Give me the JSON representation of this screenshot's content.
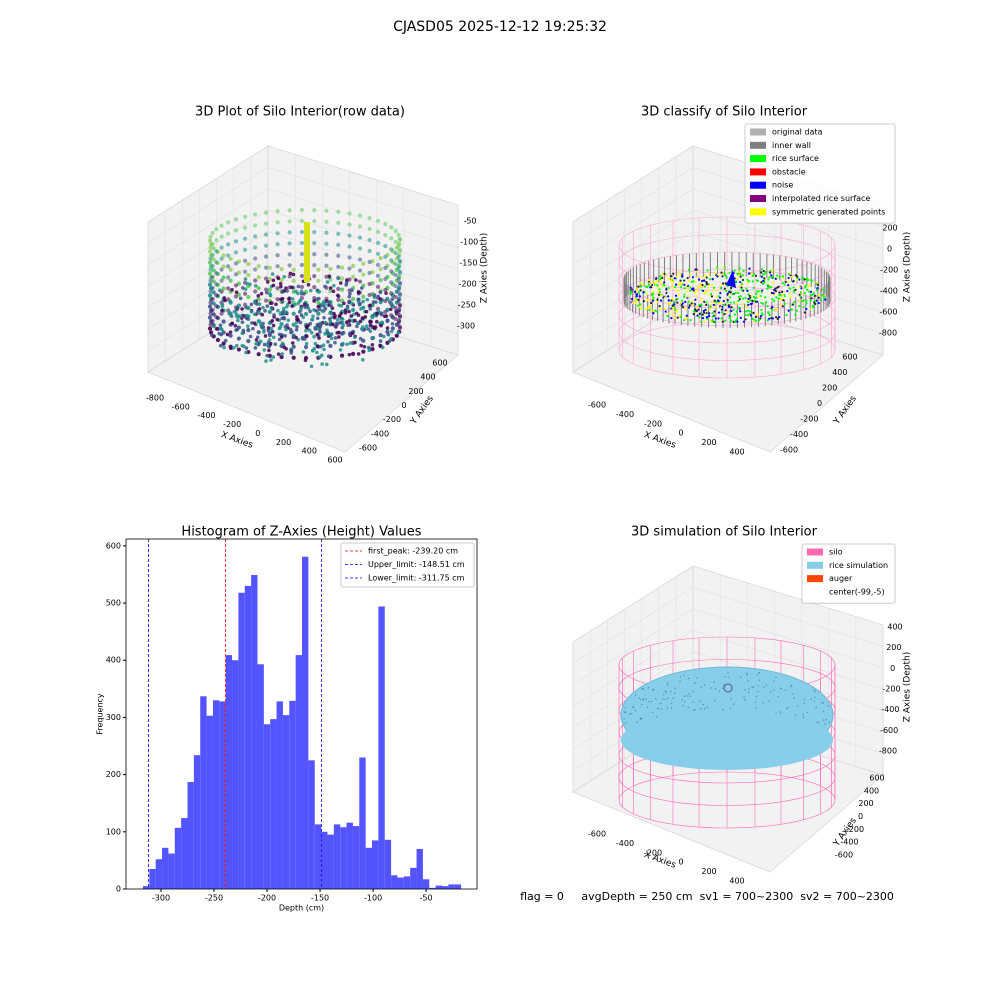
{
  "title": "CJASD05 2025-12-12 19:25:32",
  "footer": "flag = 0     avgDepth = 250 cm  sv1 = 700~2300  sv2 = 700~2300",
  "chart_data": [
    {
      "type": "scatter3d",
      "title": "3D Plot of Silo Interior(row data)",
      "xlabel": "X Axies",
      "ylabel": "Y Axies",
      "zlabel": "Z Axies (Depth)",
      "xticks": [
        -800,
        -600,
        -400,
        -200,
        0,
        200,
        400,
        600
      ],
      "yticks": [
        -600,
        -400,
        -200,
        0,
        200,
        400,
        600
      ],
      "zticks": [
        -50,
        -100,
        -150,
        -200,
        -250,
        -300
      ]
    },
    {
      "type": "classify3d",
      "title": "3D classify of Silo Interior",
      "xlabel": "X Axies",
      "ylabel": "Y Axies",
      "zlabel": "Z Axies (Depth)",
      "xticks": [
        -600,
        -400,
        -200,
        0,
        200,
        400
      ],
      "yticks": [
        -600,
        -400,
        -200,
        0,
        200,
        400,
        600
      ],
      "zticks": [
        200,
        0,
        -200,
        -400,
        -600,
        -800
      ],
      "legend": [
        {
          "name": "original data",
          "color": "#b0b0b0"
        },
        {
          "name": "inner wall",
          "color": "#808080"
        },
        {
          "name": "rice surface",
          "color": "#00ff00"
        },
        {
          "name": "obstacle",
          "color": "#ff0000"
        },
        {
          "name": "noise",
          "color": "#0000ff"
        },
        {
          "name": "interpolated rice surface",
          "color": "#800080"
        },
        {
          "name": "symmetric generated points",
          "color": "#ffff00"
        }
      ]
    },
    {
      "type": "histogram",
      "title": "Histogram of Z-Axies (Height) Values",
      "xlabel": "Depth (cm)",
      "ylabel": "Frequency",
      "color": "#4b4bff",
      "bins": [
        -317,
        -311,
        -305,
        -299,
        -293,
        -287,
        -281,
        -275,
        -269,
        -263,
        -257,
        -251,
        -245,
        -239,
        -233,
        -227,
        -221,
        -215,
        -209,
        -203,
        -197,
        -191,
        -185,
        -179,
        -173,
        -167,
        -161,
        -155,
        -149,
        -143,
        -137,
        -131,
        -125,
        -119,
        -113,
        -107,
        -101,
        -95,
        -89,
        -83,
        -77,
        -71,
        -65,
        -59,
        -53,
        -47,
        -41,
        -35,
        -29,
        -23,
        -17
      ],
      "values": [
        5,
        35,
        52,
        72,
        62,
        107,
        124,
        187,
        234,
        337,
        303,
        330,
        328,
        409,
        400,
        518,
        530,
        549,
        393,
        288,
        297,
        328,
        304,
        329,
        409,
        581,
        225,
        113,
        100,
        95,
        113,
        108,
        116,
        110,
        230,
        72,
        85,
        494,
        86,
        24,
        20,
        22,
        37,
        70,
        17,
        2,
        6,
        5,
        8,
        8
      ],
      "xlim": [
        -333,
        -2
      ],
      "ylim": [
        0,
        612
      ],
      "xticks": [
        -300,
        -250,
        -200,
        -150,
        -100,
        -50
      ],
      "yticks": [
        0,
        100,
        200,
        300,
        400,
        500,
        600
      ],
      "vlines": [
        {
          "label": "first_peak: -239.20 cm",
          "value": -239.2,
          "color": "#ff0000"
        },
        {
          "label": "Upper_limit: -148.51 cm",
          "value": -148.51,
          "color": "#0000ff"
        },
        {
          "label": "Lower_limit: -311.75 cm",
          "value": -311.75,
          "color": "#0000ff"
        }
      ]
    },
    {
      "type": "surface3d",
      "title": "3D simulation of Silo Interior",
      "xlabel": "X Axies",
      "ylabel": "Y Axies",
      "zlabel": "Z Axies (Depth)",
      "xticks": [
        -600,
        -400,
        -200,
        0,
        200,
        400
      ],
      "yticks": [
        -600,
        -400,
        -200,
        0,
        200,
        400,
        600
      ],
      "zticks": [
        400,
        200,
        0,
        -200,
        -400,
        -600,
        -800
      ],
      "legend": [
        {
          "name": "silo",
          "color": "#ff69b4"
        },
        {
          "name": "rice simulation",
          "color": "#87ceeb"
        },
        {
          "name": "auger",
          "color": "#ff4500"
        },
        {
          "name": "center(-99,-5)"
        }
      ]
    }
  ]
}
